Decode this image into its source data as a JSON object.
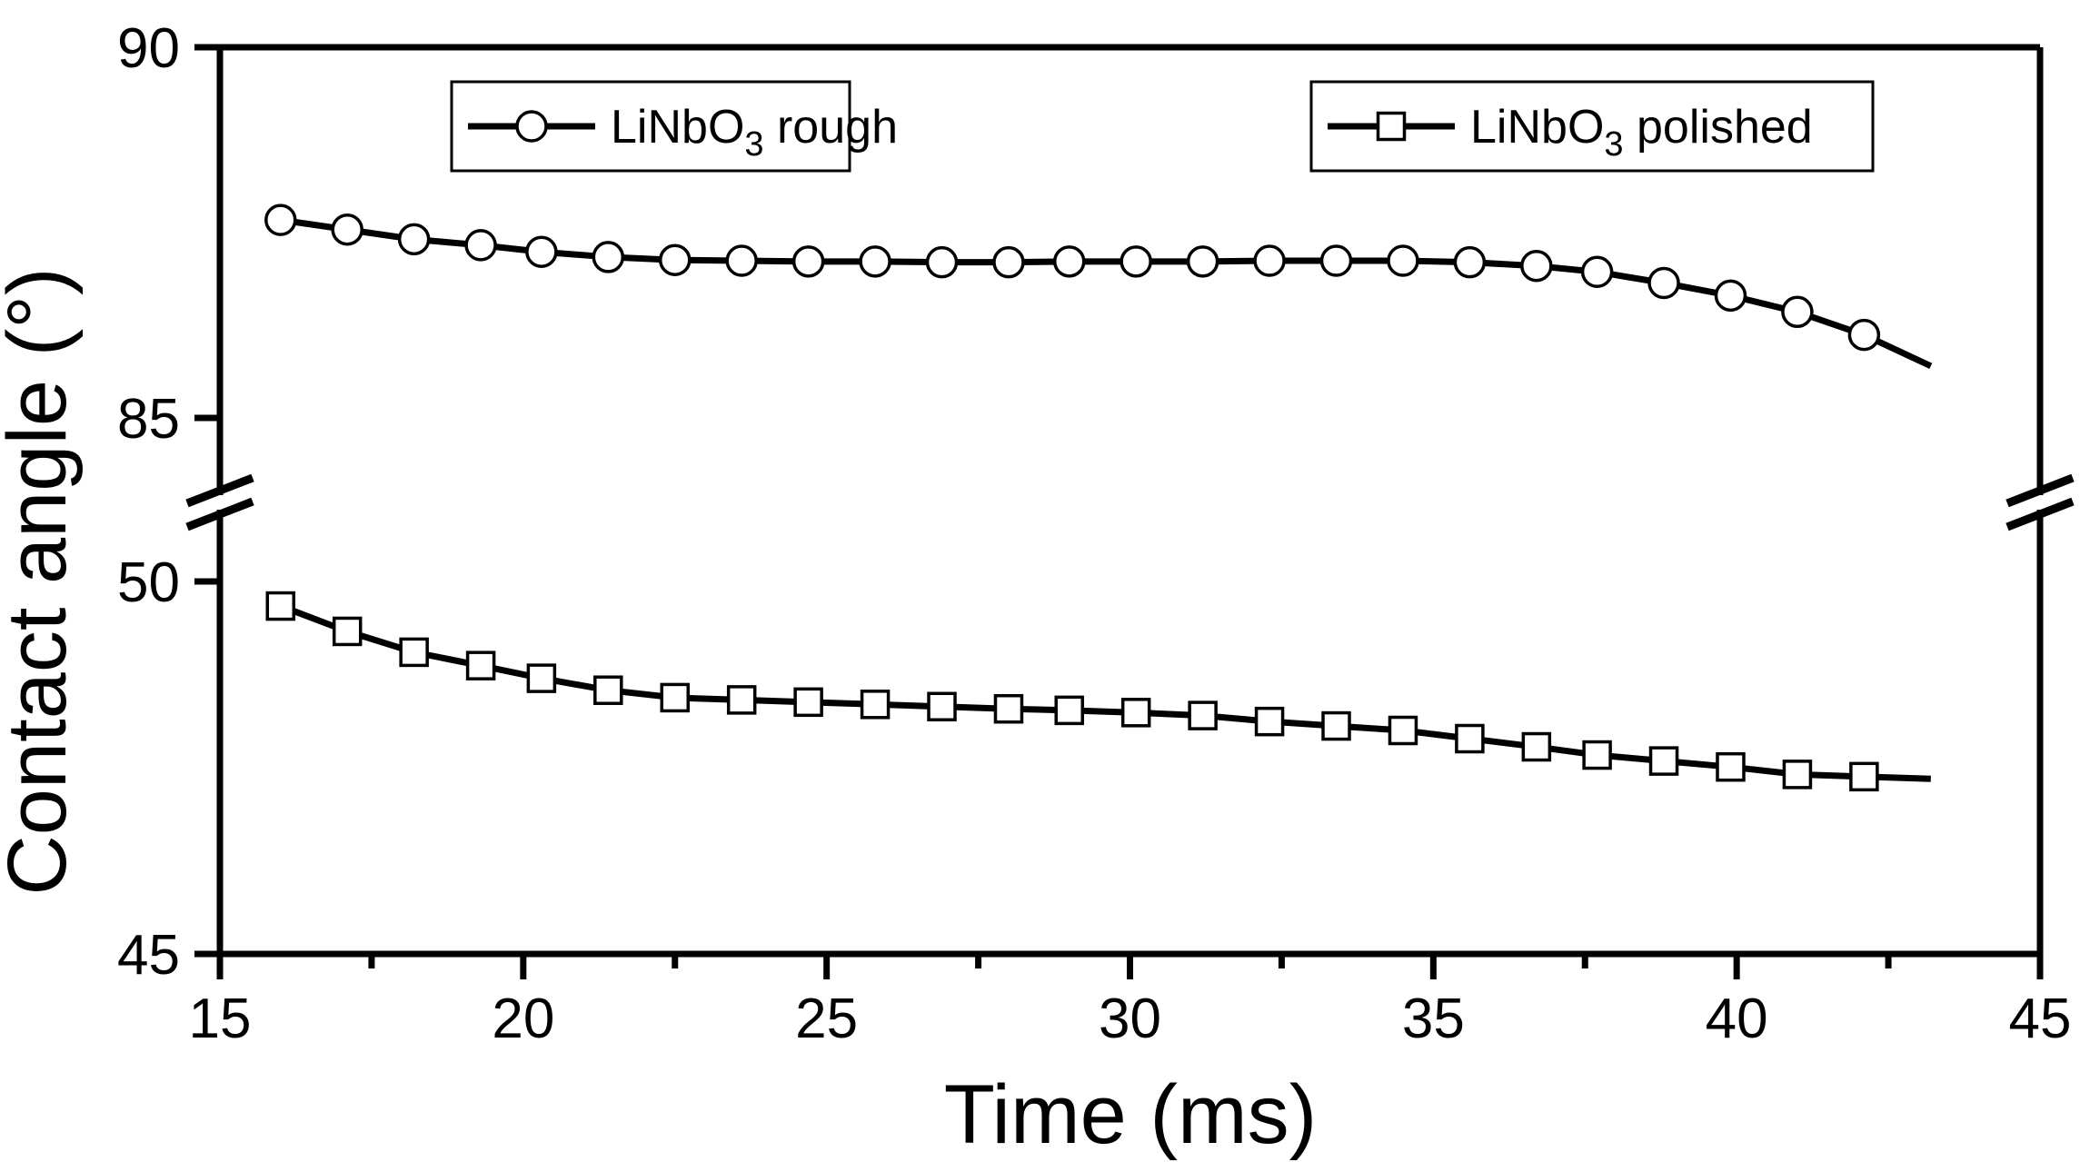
{
  "page": {
    "background": "#ffffff",
    "ink": "#000000"
  },
  "chart_data": {
    "type": "line",
    "title": "",
    "xlabel": "Time (ms)",
    "ylabel": "Contact angle (°)",
    "xlim": [
      15,
      45
    ],
    "x_major_ticks": [
      15,
      20,
      25,
      30,
      35,
      40,
      45
    ],
    "x_minor_ticks": [
      17.5,
      22.5,
      27.5,
      32.5,
      37.5,
      42.5
    ],
    "grid": false,
    "legend_position": "top-inside",
    "y_axis": {
      "broken": true,
      "upper_segment": {
        "ticks": [
          90,
          85
        ],
        "range": [
          84.2,
          90
        ]
      },
      "lower_segment": {
        "ticks": [
          50,
          45
        ],
        "range": [
          45,
          50.8
        ]
      }
    },
    "series": [
      {
        "name": "LiNbO3 rough",
        "marker": "circle",
        "x": [
          16.0,
          17.1,
          18.2,
          19.3,
          20.3,
          21.4,
          22.5,
          23.6,
          24.7,
          25.8,
          26.9,
          28.0,
          29.0,
          30.1,
          31.2,
          32.3,
          33.4,
          34.5,
          35.6,
          36.7,
          37.7,
          38.8,
          39.9,
          41.0,
          42.1
        ],
        "y": [
          87.67,
          87.54,
          87.41,
          87.33,
          87.24,
          87.17,
          87.13,
          87.12,
          87.11,
          87.11,
          87.1,
          87.1,
          87.11,
          87.11,
          87.11,
          87.12,
          87.12,
          87.12,
          87.1,
          87.05,
          86.97,
          86.82,
          86.65,
          86.43,
          86.12
        ],
        "trailing_line_end": {
          "x": 43.2,
          "y": 85.7
        }
      },
      {
        "name": "LiNbO3 polished",
        "marker": "square",
        "x": [
          16.0,
          17.1,
          18.2,
          19.3,
          20.3,
          21.4,
          22.5,
          23.6,
          24.7,
          25.8,
          26.9,
          28.0,
          29.0,
          30.1,
          31.2,
          32.3,
          33.4,
          34.5,
          35.6,
          36.7,
          37.7,
          38.8,
          39.9,
          41.0,
          42.1
        ],
        "y": [
          49.67,
          49.33,
          49.05,
          48.87,
          48.7,
          48.54,
          48.44,
          48.41,
          48.38,
          48.35,
          48.32,
          48.29,
          48.27,
          48.24,
          48.2,
          48.12,
          48.06,
          48.0,
          47.89,
          47.78,
          47.67,
          47.59,
          47.51,
          47.41,
          47.38
        ],
        "trailing_line_end": {
          "x": 43.2,
          "y": 47.35
        }
      }
    ]
  },
  "legend": {
    "entries": [
      {
        "marker": "circle",
        "formula_base": "LiNbO",
        "formula_sub": "3",
        "label_rest": " rough"
      },
      {
        "marker": "square",
        "formula_base": "LiNbO",
        "formula_sub": "3",
        "label_rest": " polished"
      }
    ]
  }
}
